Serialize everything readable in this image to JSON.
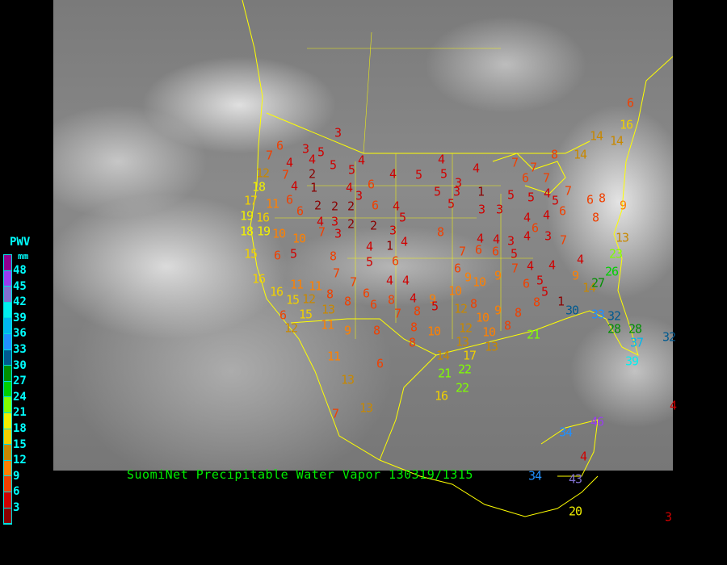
{
  "title": "SuomiNet Precipitable Water Vapor 130319/1315",
  "legend": {
    "title": "PWV",
    "unit": "mm",
    "ticks": [
      "48",
      "45",
      "42",
      "39",
      "36",
      "33",
      "30",
      "27",
      "24",
      "21",
      "18",
      "15",
      "12",
      "9",
      "6",
      "3"
    ],
    "colors": [
      "#900090",
      "#9a3cf0",
      "#8070d0",
      "#00f0f0",
      "#00b8f0",
      "#2090ff",
      "#005a90",
      "#009000",
      "#00d000",
      "#80ff00",
      "#f0f000",
      "#f0d000",
      "#c88800",
      "#ff8000",
      "#f04000",
      "#d00000",
      "#8b0000"
    ]
  },
  "stations": [
    3,
    6,
    3,
    5,
    7,
    4,
    4,
    2,
    5,
    5,
    4,
    12,
    7,
    18,
    4,
    1,
    4,
    3,
    6,
    4,
    5,
    4,
    5,
    3,
    4,
    5,
    3,
    1,
    7,
    6,
    7,
    7,
    8,
    14,
    14,
    14,
    16,
    6,
    17,
    11,
    6,
    6,
    2,
    2,
    2,
    6,
    4,
    5,
    3,
    3,
    5,
    5,
    4,
    5,
    7,
    6,
    8,
    9,
    19,
    16,
    4,
    3,
    2,
    2,
    5,
    8,
    4,
    6,
    4,
    6,
    8,
    18,
    19,
    10,
    10,
    7,
    3,
    3,
    1,
    4,
    4,
    4,
    3,
    4,
    3,
    7,
    13,
    15,
    6,
    5,
    8,
    4,
    5,
    6,
    7,
    6,
    6,
    5,
    4,
    4,
    23,
    16,
    7,
    7,
    4,
    4,
    6,
    9,
    10,
    9,
    7,
    6,
    5,
    4,
    9,
    14,
    26,
    27,
    16,
    11,
    11,
    8,
    6,
    8,
    4,
    9,
    10,
    5,
    1,
    8,
    15,
    12,
    8,
    6,
    7,
    5,
    6,
    15,
    13,
    8,
    12,
    8,
    10,
    9,
    30,
    33,
    32,
    12,
    11,
    9,
    8,
    8,
    10,
    12,
    10,
    8,
    8,
    28,
    28,
    32,
    13,
    13,
    8,
    21,
    37,
    11,
    6,
    14,
    17,
    39,
    21,
    22,
    13,
    16,
    22,
    13,
    7,
    46,
    34,
    4,
    34,
    43,
    4,
    20,
    3
  ]
}
